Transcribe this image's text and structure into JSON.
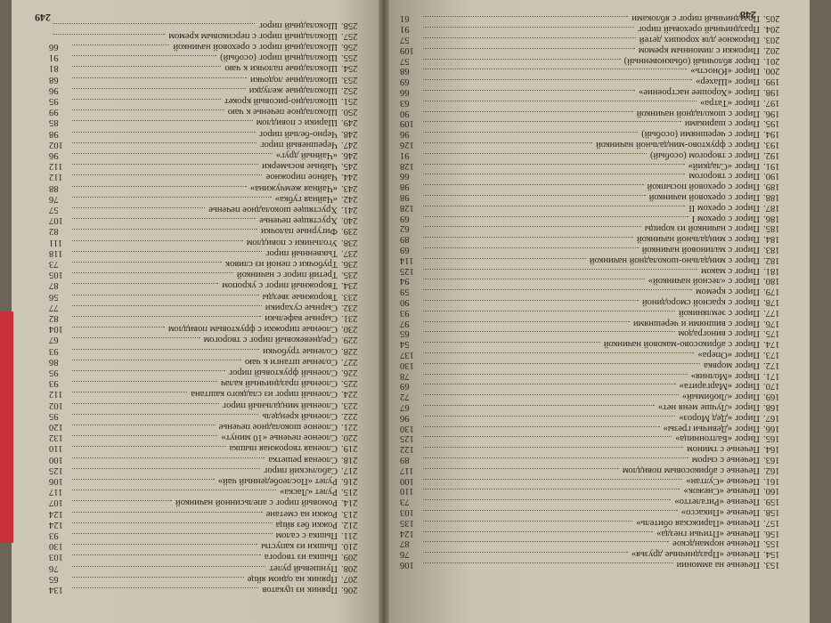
{
  "pages": [
    {
      "number": "248",
      "entries": [
        {
          "num": "153.",
          "title": "Печенье на аммонии",
          "page": 106
        },
        {
          "num": "154.",
          "title": "Печенье «Праздничные друзья»",
          "page": 76
        },
        {
          "num": "155.",
          "title": "Печенье нормандское",
          "page": 87
        },
        {
          "num": "156.",
          "title": "Печенье «Птичьи гнезда»",
          "page": 124
        },
        {
          "num": "157.",
          "title": "Печенье «Парижская обитель»",
          "page": 135
        },
        {
          "num": "158.",
          "title": "Печенье «Пикассо»",
          "page": 103
        },
        {
          "num": "159.",
          "title": "Печенье «Ригалетто»",
          "page": 73
        },
        {
          "num": "160.",
          "title": "Печенье «Снежок»",
          "page": 110
        },
        {
          "num": "161.",
          "title": "Печенье «Султан»",
          "page": 100
        },
        {
          "num": "162.",
          "title": "Печенье с абрикосовым повидлом",
          "page": 117
        },
        {
          "num": "163.",
          "title": "Печенье с сыром",
          "page": 89
        },
        {
          "num": "164.",
          "title": "Печенье с тмином",
          "page": 122
        },
        {
          "num": "165.",
          "title": "Пирог «Балтонница»",
          "page": 125
        },
        {
          "num": "166.",
          "title": "Пирог «Девичьи грезы»",
          "page": 130
        },
        {
          "num": "167.",
          "title": "Пирог «Дед Мороз»",
          "page": 96
        },
        {
          "num": "168.",
          "title": "Пирог «Лучше меня нет»",
          "page": 67
        },
        {
          "num": "169.",
          "title": "Пирог «Любимый»",
          "page": 72
        },
        {
          "num": "170.",
          "title": "Пирог «Маргарита»",
          "page": 69
        },
        {
          "num": "171.",
          "title": "Пирог «Молния»",
          "page": 78
        },
        {
          "num": "172.",
          "title": "Пирог морвка",
          "page": 130
        },
        {
          "num": "173.",
          "title": "Пирог «Опера»",
          "page": 137
        },
        {
          "num": "174.",
          "title": "Пирог с абрикосово-маковой начинкой",
          "page": 54
        },
        {
          "num": "175.",
          "title": "Пирог с виноградом",
          "page": 65
        },
        {
          "num": "176.",
          "title": "Пирог с вишнями и черешнями",
          "page": 97
        },
        {
          "num": "177.",
          "title": "Пирог с земляникой",
          "page": 93
        },
        {
          "num": "178.",
          "title": "Пирог с красной смородиной",
          "page": 90
        },
        {
          "num": "179.",
          "title": "Пирог с кремом",
          "page": 59
        },
        {
          "num": "180.",
          "title": "Пирог с «лесной начинкой»",
          "page": 94
        },
        {
          "num": "181.",
          "title": "Пирог с маком",
          "page": 125
        },
        {
          "num": "182.",
          "title": "Пирог с миндально-шоколадной начинкой",
          "page": 114
        },
        {
          "num": "183.",
          "title": "Пирог с малиновой начинкой",
          "page": 69
        },
        {
          "num": "184.",
          "title": "Пирог с миндальной начинкой",
          "page": 89
        },
        {
          "num": "185.",
          "title": "Пирог с начинкой из корицы",
          "page": 62
        },
        {
          "num": "186.",
          "title": "Пирог с орехом I",
          "page": 69
        },
        {
          "num": "187.",
          "title": "Пирог с орехом II",
          "page": 128
        },
        {
          "num": "188.",
          "title": "Пирог с ореховой начинкой",
          "page": 98
        },
        {
          "num": "189.",
          "title": "Пирог с ореховой посыпкой",
          "page": 98
        },
        {
          "num": "190.",
          "title": "Пирог с творогом",
          "page": 66
        },
        {
          "num": "191.",
          "title": "Пирог «Сладкий»",
          "page": 128
        },
        {
          "num": "192.",
          "title": "Пирог с творогом (особый)",
          "page": 91
        },
        {
          "num": "193.",
          "title": "Пирог с фруктово-миндальной начинкой",
          "page": 126
        },
        {
          "num": "194.",
          "title": "Пирог с черешнями (особый)",
          "page": 96
        },
        {
          "num": "195.",
          "title": "Пирог с шариками",
          "page": 109
        },
        {
          "num": "196.",
          "title": "Пирог с шоколадной начинкой",
          "page": 90
        },
        {
          "num": "197.",
          "title": "Пирог «Татра»",
          "page": 63
        },
        {
          "num": "198.",
          "title": "Пирог «Хорошее настроение»",
          "page": 66
        },
        {
          "num": "199.",
          "title": "Пирог «Шахер»",
          "page": 69
        },
        {
          "num": "200.",
          "title": "Пирог «Юность»",
          "page": 68
        },
        {
          "num": "201.",
          "title": "Пирог яблочный (обыкновенный)",
          "page": 57
        },
        {
          "num": "202.",
          "title": "Пирожки с лимонным кремом",
          "page": 109
        },
        {
          "num": "203.",
          "title": "Пирожное для хороших детей",
          "page": 57
        },
        {
          "num": "204.",
          "title": "Праздничный ореховый пирог",
          "page": 91
        },
        {
          "num": "205.",
          "title": "Праздничный пирог с яблоками",
          "page": 61
        }
      ]
    },
    {
      "number": "249",
      "entries": [
        {
          "num": "206.",
          "title": "Пряник из цукатов",
          "page": 134
        },
        {
          "num": "207.",
          "title": "Пряник на одном яйце",
          "page": 65
        },
        {
          "num": "208.",
          "title": "Пуншевый рулет",
          "page": 76
        },
        {
          "num": "209.",
          "title": "Пышка из творога",
          "page": 103
        },
        {
          "num": "210.",
          "title": "Пышки из капусты",
          "page": 130
        },
        {
          "num": "211.",
          "title": "Пышка с салом",
          "page": 93
        },
        {
          "num": "212.",
          "title": "Рожки без яйца",
          "page": 124
        },
        {
          "num": "213.",
          "title": "Рожки на сметане",
          "page": 124
        },
        {
          "num": "214.",
          "title": "Ромовый пирог с апельсинной начинкой",
          "page": 107
        },
        {
          "num": "215.",
          "title": "Рулет «Ласка»",
          "page": 117
        },
        {
          "num": "216.",
          "title": "Рулет «Послеобеденный чай»",
          "page": 106
        },
        {
          "num": "217.",
          "title": "Саболчский пирог",
          "page": 125
        },
        {
          "num": "218.",
          "title": "Слоеная решетка",
          "page": 100
        },
        {
          "num": "219.",
          "title": "Слоеная творожная пышка",
          "page": 110
        },
        {
          "num": "220.",
          "title": "Слоеное печенье «10 минут»",
          "page": 132
        },
        {
          "num": "221.",
          "title": "Слоеное шоколадное печенье",
          "page": 120
        },
        {
          "num": "222.",
          "title": "Слоеный крендель",
          "page": 95
        },
        {
          "num": "223.",
          "title": "Слоеный миндальный пирог",
          "page": 102
        },
        {
          "num": "224.",
          "title": "Слоеный пирог из сладкого каштана",
          "page": 112
        },
        {
          "num": "225.",
          "title": "Слоеный праздничный калач",
          "page": 93
        },
        {
          "num": "226.",
          "title": "Слоеный фруктовый пирог",
          "page": 95
        },
        {
          "num": "227.",
          "title": "Соленые штанги к чаю",
          "page": 86
        },
        {
          "num": "228.",
          "title": "Соленые трубочки",
          "page": 93
        },
        {
          "num": "229.",
          "title": "Средневековый пирог с творогом",
          "page": 67
        },
        {
          "num": "230.",
          "title": "Слоеные пирожки с фруктовым повидлом",
          "page": 104
        },
        {
          "num": "231.",
          "title": "Сырные вафельки",
          "page": 82
        },
        {
          "num": "232.",
          "title": "Сырные сухарики",
          "page": 77
        },
        {
          "num": "233.",
          "title": "Творожные звезды",
          "page": 56
        },
        {
          "num": "234.",
          "title": "Творожный пирог с укропом",
          "page": 87
        },
        {
          "num": "235.",
          "title": "Третий пирог с начинкой",
          "page": 105
        },
        {
          "num": "236.",
          "title": "Трубочки с пеной из сливок",
          "page": 73
        },
        {
          "num": "237.",
          "title": "Тыквенный пирог",
          "page": 118
        },
        {
          "num": "238.",
          "title": "Угольники с повидлом",
          "page": 111
        },
        {
          "num": "239.",
          "title": "Фигурные палочки",
          "page": 82
        },
        {
          "num": "240.",
          "title": "Хрустящее печенье",
          "page": 107
        },
        {
          "num": "241.",
          "title": "Хрустящее шоколадное печенье",
          "page": 57
        },
        {
          "num": "242.",
          "title": "«Чайная губка»",
          "page": 76
        },
        {
          "num": "243.",
          "title": "«Чайная жемчужина»",
          "page": 88
        },
        {
          "num": "244.",
          "title": "Чайное пирожное",
          "page": 112
        },
        {
          "num": "245.",
          "title": "Чайные восьмерки",
          "page": 112
        },
        {
          "num": "246.",
          "title": "«Чайный друг»",
          "page": 96
        },
        {
          "num": "247.",
          "title": "Черешневый пирог",
          "page": 102
        },
        {
          "num": "248.",
          "title": "Черно-белый пирог",
          "page": 98
        },
        {
          "num": "249.",
          "title": "Шарики с повидлом",
          "page": 85
        },
        {
          "num": "250.",
          "title": "Шоколадное печенье к чаю",
          "page": 99
        },
        {
          "num": "251.",
          "title": "Шоколадно-рисовый крокет",
          "page": 95
        },
        {
          "num": "252.",
          "title": "Шоколадные желудки",
          "page": 96
        },
        {
          "num": "253.",
          "title": "Шоколадные лодочки",
          "page": 68
        },
        {
          "num": "254.",
          "title": "Шоколадные палочки к чаю",
          "page": 81
        },
        {
          "num": "255.",
          "title": "Шоколадный пирог (особый)",
          "page": 91
        },
        {
          "num": "256.",
          "title": "Шоколадный пирог с ореховой начинкой",
          "page": 66
        },
        {
          "num": "257.",
          "title": "Шоколадный пирог с персиковым кремом"
        },
        {
          "num": "258.",
          "title": "Шоколадный пирог"
        }
      ]
    }
  ]
}
